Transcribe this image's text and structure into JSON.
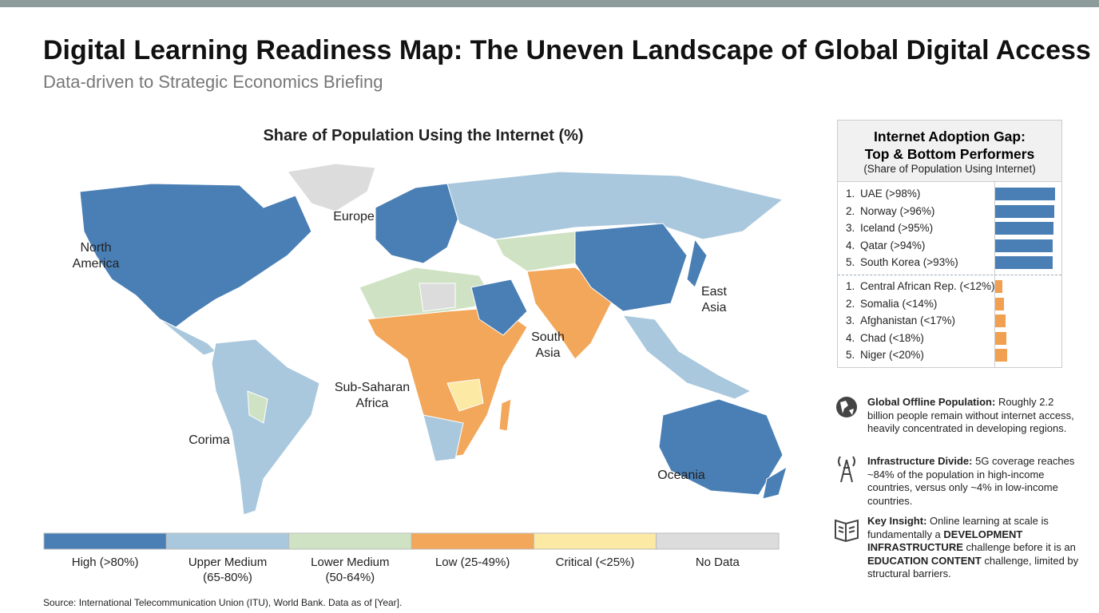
{
  "header": {
    "title": "Digital Learning Readiness Map: The Uneven Landscape of Global Digital Access",
    "subtitle": "Data-driven to Strategic Economics Briefing"
  },
  "map": {
    "title": "Share of Population Using the Internet (%)",
    "regions": [
      {
        "lines": [
          "North",
          "America"
        ]
      },
      {
        "lines": [
          "Europe"
        ]
      },
      {
        "lines": [
          "East",
          "Asia"
        ]
      },
      {
        "lines": [
          "South",
          "Asia"
        ]
      },
      {
        "lines": [
          "Sub-Saharan",
          "Africa"
        ]
      },
      {
        "lines": [
          "Corima"
        ]
      },
      {
        "lines": [
          "Oceania"
        ]
      }
    ],
    "legend": [
      {
        "lines": [
          "High (>80%)"
        ],
        "color": "#4a7fb5"
      },
      {
        "lines": [
          "Upper Medium",
          "(65-80%)"
        ],
        "color": "#a9c8dd"
      },
      {
        "lines": [
          "Lower Medium",
          "(50-64%)"
        ],
        "color": "#cfe3c4"
      },
      {
        "lines": [
          "Low (25-49%)"
        ],
        "color": "#f2a75a"
      },
      {
        "lines": [
          "Critical (<25%)"
        ],
        "color": "#fbe9a4"
      },
      {
        "lines": [
          "No Data"
        ],
        "color": "#dcdcdc"
      }
    ]
  },
  "panel": {
    "title_lines": [
      "Internet Adoption Gap:",
      "Top & Bottom Performers"
    ],
    "subtitle": "(Share of Population Using Internet)",
    "top": {
      "color": "#4a7fb5",
      "items": [
        {
          "rank": "1.",
          "label": "UAE (>98%)",
          "value": 98
        },
        {
          "rank": "2.",
          "label": "Norway (>96%)",
          "value": 96
        },
        {
          "rank": "3.",
          "label": "Iceland (>95%)",
          "value": 95
        },
        {
          "rank": "4.",
          "label": "Qatar (>94%)",
          "value": 94
        },
        {
          "rank": "5.",
          "label": "South Korea (>93%)",
          "value": 93
        }
      ]
    },
    "bottom": {
      "color": "#f0a050",
      "items": [
        {
          "rank": "1.",
          "label": "Central African Rep. (<12%)",
          "value": 12
        },
        {
          "rank": "2.",
          "label": "Somalia (<14%)",
          "value": 14
        },
        {
          "rank": "3.",
          "label": "Afghanistan (<17%)",
          "value": 17
        },
        {
          "rank": "4.",
          "label": "Chad (<18%)",
          "value": 18
        },
        {
          "rank": "5.",
          "label": "Niger (<20%)",
          "value": 20
        }
      ]
    }
  },
  "insights": [
    {
      "segments": [
        {
          "text": "Global Offline Population:",
          "bold": true
        },
        {
          "text": " Roughly 2.2 billion people remain without internet access, heavily concentrated in developing regions.",
          "bold": false
        }
      ]
    },
    {
      "segments": [
        {
          "text": "Infrastructure Divide:",
          "bold": true
        },
        {
          "text": " 5G coverage reaches ~84% of the population in high-income countries, versus only ~4% in low-income countries.",
          "bold": false
        }
      ]
    },
    {
      "segments": [
        {
          "text": "Key Insight:",
          "bold": true
        },
        {
          "text": " Online learning at scale is fundamentally a ",
          "bold": false
        },
        {
          "text": "DEVELOPMENT INFRASTRUCTURE",
          "bold": true
        },
        {
          "text": " challenge before it is an ",
          "bold": false
        },
        {
          "text": "EDUCATION CONTENT",
          "bold": true
        },
        {
          "text": " challenge, limited by structural barriers.",
          "bold": false
        }
      ]
    }
  ],
  "source": "Source: International Telecommunication Union (ITU), World Bank. Data as of [Year]."
}
